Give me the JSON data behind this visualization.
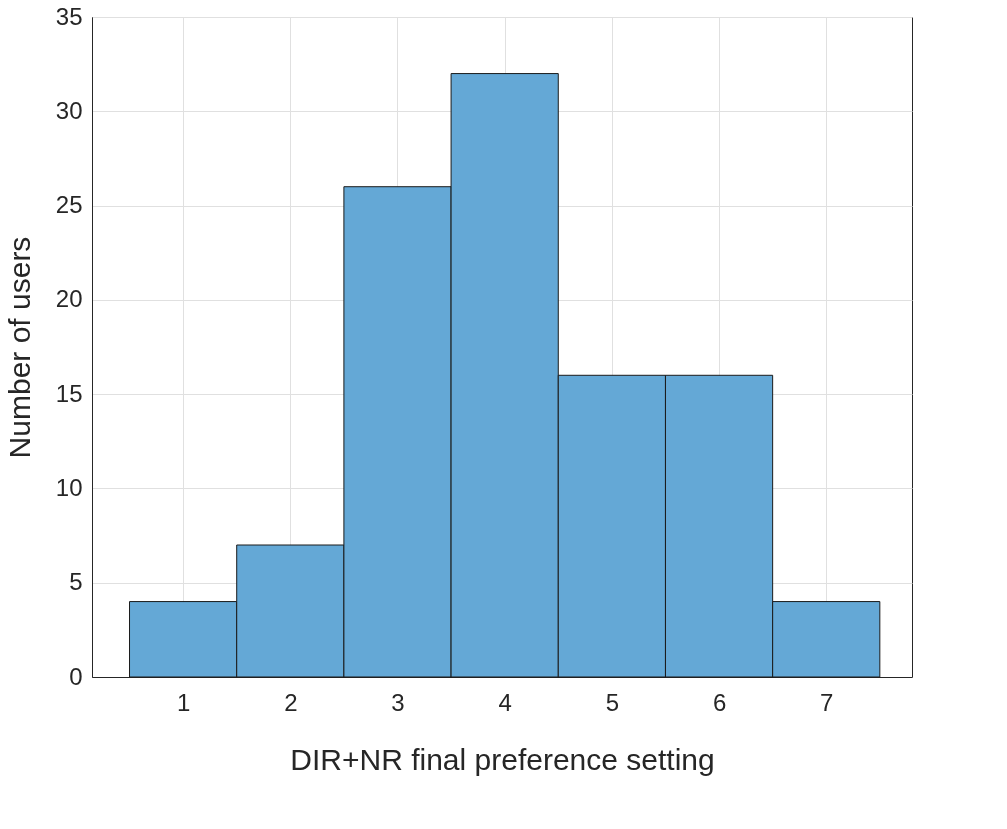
{
  "chart_data": {
    "type": "histogram",
    "xlabel": "DIR+NR final preference setting",
    "ylabel": "Number of users",
    "bins": [
      0.5,
      1.5,
      2.5,
      3.5,
      4.5,
      5.5,
      6.5,
      7.5
    ],
    "values": [
      4,
      7,
      26,
      32,
      16,
      16,
      4
    ],
    "color": "#64a8d6",
    "xlim": [
      0.15,
      7.8
    ],
    "xticks": [
      1,
      2,
      3,
      4,
      5,
      6,
      7
    ],
    "ylim": [
      0,
      35
    ],
    "yticks": [
      0,
      5,
      10,
      15,
      20,
      25,
      30,
      35
    ],
    "grid": true
  }
}
